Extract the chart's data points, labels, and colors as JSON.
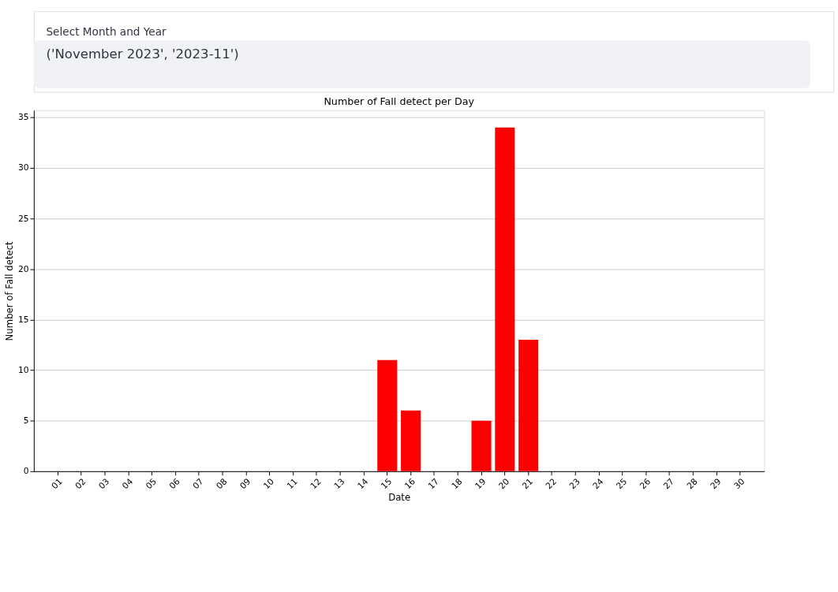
{
  "chart_data": {
    "type": "bar",
    "title": "Number of Fall detect per Day",
    "xlabel": "Date",
    "ylabel": "Number of Fall detect",
    "annotations": [
      "Select Month and Year",
      "('November 2023', '2023-11')"
    ],
    "categories": [
      "01",
      "02",
      "03",
      "04",
      "05",
      "06",
      "07",
      "08",
      "09",
      "10",
      "11",
      "12",
      "13",
      "14",
      "15",
      "16",
      "17",
      "18",
      "19",
      "20",
      "21",
      "22",
      "23",
      "24",
      "25",
      "26",
      "27",
      "28",
      "29",
      "30"
    ],
    "values": [
      0,
      0,
      0,
      0,
      0,
      0,
      0,
      0,
      0,
      0,
      0,
      0,
      0,
      0,
      11,
      6,
      0,
      0,
      5,
      34,
      13,
      0,
      0,
      0,
      0,
      0,
      0,
      0,
      0,
      0
    ],
    "color": "#ff0000",
    "ylim": [
      0,
      35.7
    ],
    "yticks": [
      0,
      5,
      10,
      15,
      20,
      25,
      30,
      35
    ],
    "grid": "y"
  }
}
